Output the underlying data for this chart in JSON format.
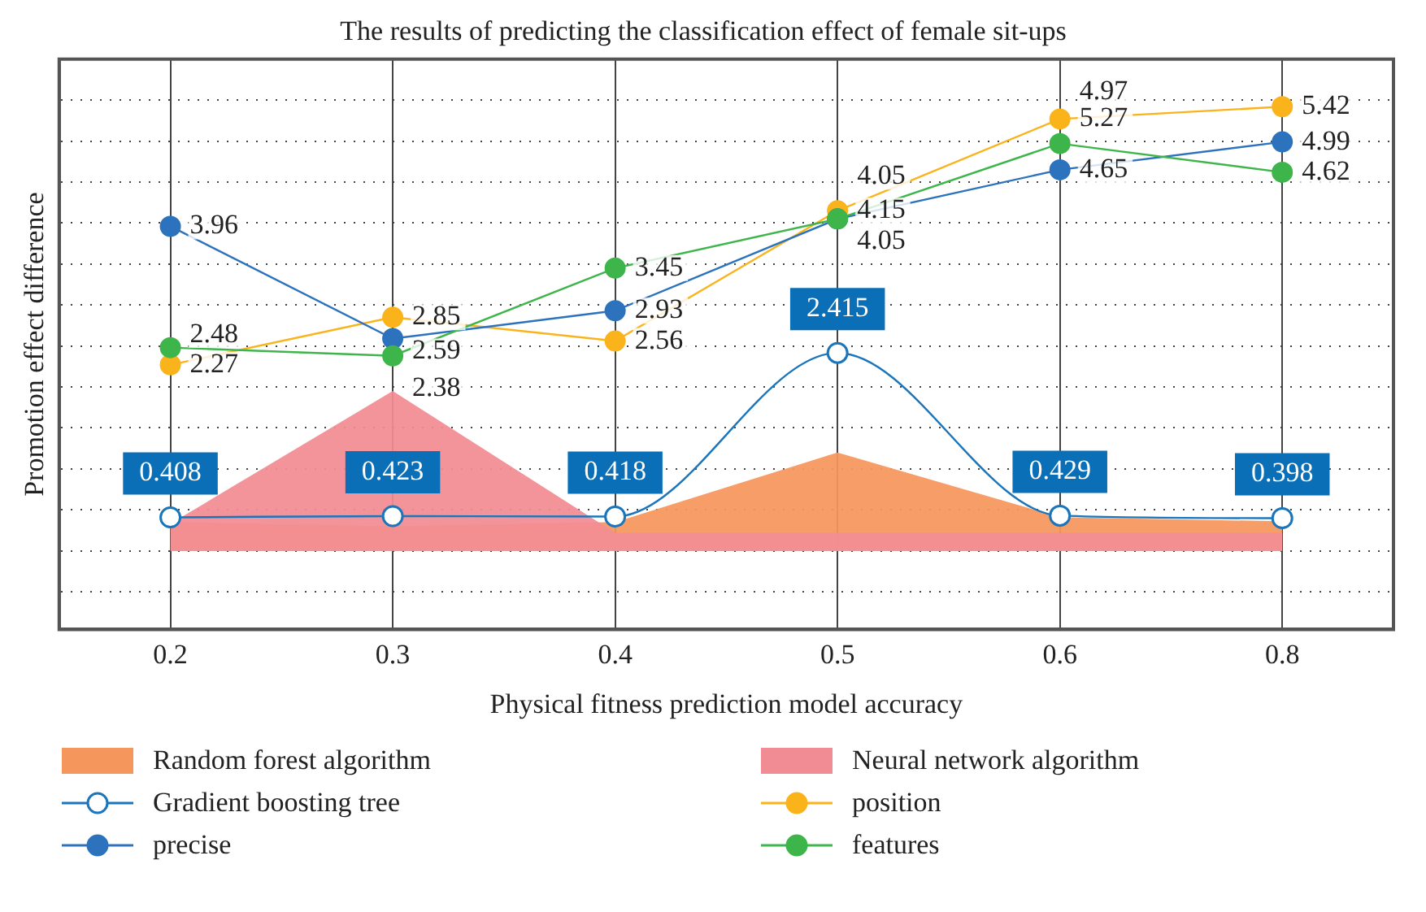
{
  "chart_data": {
    "type": "line",
    "title": "The results of predicting the classification effect of female sit-ups",
    "xlabel": "Physical fitness prediction model accuracy",
    "ylabel": "Promotion effect difference",
    "categories": [
      "0.2",
      "0.3",
      "0.4",
      "0.5",
      "0.6",
      "0.8"
    ],
    "ylim": [
      -0.96,
      6.0
    ],
    "tick_labels": "x",
    "grid": true,
    "legend": "bottom",
    "series": [
      {
        "type": "area",
        "name": "Random forest algorithm",
        "color": "#f5965d",
        "marker": "none",
        "values": [
          0.35,
          0.3,
          0.35,
          1.2,
          0.41,
          0.36
        ]
      },
      {
        "type": "area",
        "name": "Neural network algorithm",
        "color": "#f28c94",
        "marker": "none",
        "values": [
          0.33,
          1.95,
          0.22,
          0.22,
          0.22,
          0.22
        ]
      },
      {
        "name": "Gradient boosting tree",
        "color": "#1a75bb",
        "marker": "circle",
        "values": [
          0.408,
          0.423,
          0.418,
          2.415,
          0.429,
          0.398
        ],
        "value_labels": [
          "0.408",
          "0.423",
          "0.418",
          "2.415",
          "0.429",
          "0.398"
        ]
      },
      {
        "name": "position",
        "color": "#fbb31b",
        "marker": "circle",
        "values": [
          2.27,
          2.85,
          2.56,
          4.15,
          5.27,
          5.42
        ],
        "value_labels": [
          "2.27",
          "2.85",
          "2.56",
          "4.15",
          "5.27",
          "5.42"
        ]
      },
      {
        "name": "precise",
        "color": "#2c72bd",
        "marker": "circle",
        "values": [
          3.96,
          2.59,
          2.93,
          4.05,
          4.65,
          4.99
        ],
        "value_labels": [
          "3.96",
          "2.59",
          "2.93",
          "4.05",
          "4.65",
          "4.99"
        ]
      },
      {
        "name": "features",
        "color": "#3db54a",
        "marker": "circle",
        "values": [
          2.48,
          2.38,
          3.45,
          4.05,
          4.97,
          4.62
        ],
        "value_labels": [
          "2.48",
          "2.38",
          "3.45",
          "4.05",
          "4.97",
          "4.62"
        ]
      }
    ]
  }
}
